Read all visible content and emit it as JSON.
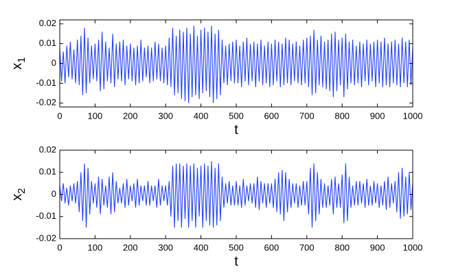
{
  "chart_data": [
    {
      "type": "line",
      "xlabel": "t",
      "ylabel": "x",
      "ylabel_subscript": "1",
      "color": "#1f3fff",
      "xlim": [
        0,
        1000
      ],
      "ylim": [
        -0.022,
        0.022
      ],
      "xticks": [
        0,
        100,
        200,
        300,
        400,
        500,
        600,
        700,
        800,
        900,
        1000
      ],
      "yticks": [
        -0.02,
        -0.01,
        0,
        0.01,
        0.02
      ],
      "x": [
        0,
        5,
        10,
        15,
        20,
        25,
        30,
        35,
        40,
        45,
        50,
        55,
        60,
        65,
        70,
        75,
        80,
        85,
        90,
        95,
        100,
        105,
        110,
        115,
        120,
        125,
        130,
        135,
        140,
        145,
        150,
        155,
        160,
        165,
        170,
        175,
        180,
        185,
        190,
        195,
        200,
        205,
        210,
        215,
        220,
        225,
        230,
        235,
        240,
        245,
        250,
        255,
        260,
        265,
        270,
        275,
        280,
        285,
        290,
        295,
        300,
        305,
        310,
        315,
        320,
        325,
        330,
        335,
        340,
        345,
        350,
        355,
        360,
        365,
        370,
        375,
        380,
        385,
        390,
        395,
        400,
        405,
        410,
        415,
        420,
        425,
        430,
        435,
        440,
        445,
        450,
        455,
        460,
        465,
        470,
        475,
        480,
        485,
        490,
        495,
        500,
        505,
        510,
        515,
        520,
        525,
        530,
        535,
        540,
        545,
        550,
        555,
        560,
        565,
        570,
        575,
        580,
        585,
        590,
        595,
        600,
        605,
        610,
        615,
        620,
        625,
        630,
        635,
        640,
        645,
        650,
        655,
        660,
        665,
        670,
        675,
        680,
        685,
        690,
        695,
        700,
        705,
        710,
        715,
        720,
        725,
        730,
        735,
        740,
        745,
        750,
        755,
        760,
        765,
        770,
        775,
        780,
        785,
        790,
        795,
        800,
        805,
        810,
        815,
        820,
        825,
        830,
        835,
        840,
        845,
        850,
        855,
        860,
        865,
        870,
        875,
        880,
        885,
        890,
        895,
        900,
        905,
        910,
        915,
        920,
        925,
        930,
        935,
        940,
        945,
        950,
        955,
        960,
        965,
        970,
        975,
        980,
        985,
        990,
        995,
        1000
      ],
      "values": [
        0.008,
        -0.009,
        0.006,
        -0.01,
        0.009,
        -0.007,
        0.011,
        -0.008,
        0.007,
        -0.01,
        0.012,
        -0.011,
        0.014,
        -0.016,
        0.018,
        -0.015,
        0.013,
        -0.01,
        0.009,
        -0.008,
        0.01,
        -0.009,
        0.012,
        -0.014,
        0.016,
        -0.013,
        0.011,
        -0.009,
        0.008,
        -0.01,
        0.015,
        -0.012,
        0.01,
        -0.008,
        0.011,
        -0.009,
        0.012,
        -0.011,
        0.009,
        -0.008,
        0.01,
        -0.009,
        0.008,
        -0.011,
        0.009,
        -0.01,
        0.012,
        -0.009,
        0.008,
        -0.007,
        0.009,
        -0.01,
        0.008,
        -0.009,
        0.011,
        -0.008,
        0.01,
        -0.009,
        0.008,
        -0.01,
        0.009,
        -0.011,
        0.013,
        -0.012,
        0.018,
        -0.016,
        0.014,
        -0.015,
        0.017,
        -0.018,
        0.016,
        -0.019,
        0.018,
        -0.02,
        0.015,
        -0.017,
        0.019,
        -0.016,
        0.014,
        -0.018,
        0.017,
        -0.015,
        0.018,
        -0.014,
        0.016,
        -0.017,
        0.019,
        -0.02,
        0.015,
        -0.018,
        0.017,
        -0.016,
        0.012,
        -0.01,
        0.009,
        -0.011,
        0.01,
        -0.009,
        0.011,
        -0.01,
        0.012,
        -0.01,
        0.009,
        -0.012,
        0.011,
        -0.009,
        0.013,
        -0.011,
        0.01,
        -0.009,
        0.011,
        -0.012,
        0.01,
        -0.009,
        0.012,
        -0.011,
        0.009,
        -0.01,
        0.011,
        -0.012,
        0.01,
        -0.011,
        0.012,
        -0.009,
        0.011,
        -0.012,
        0.01,
        -0.011,
        0.013,
        -0.01,
        0.012,
        -0.011,
        0.01,
        -0.009,
        0.011,
        -0.01,
        0.009,
        -0.011,
        0.012,
        -0.01,
        0.013,
        -0.012,
        0.014,
        -0.016,
        0.017,
        -0.015,
        0.012,
        -0.011,
        0.014,
        -0.012,
        0.011,
        -0.013,
        0.012,
        -0.014,
        0.015,
        -0.017,
        0.016,
        -0.014,
        0.012,
        -0.011,
        0.013,
        -0.017,
        0.015,
        -0.013,
        0.011,
        -0.01,
        0.012,
        -0.011,
        0.009,
        -0.01,
        0.011,
        -0.012,
        0.01,
        -0.009,
        0.012,
        -0.011,
        0.01,
        -0.009,
        0.011,
        -0.012,
        0.012,
        -0.01,
        0.011,
        -0.012,
        0.013,
        -0.011,
        0.01,
        -0.012,
        0.011,
        -0.01,
        0.012,
        -0.011,
        0.01,
        -0.012,
        0.013,
        -0.01,
        0.011,
        -0.012,
        0.012,
        -0.011,
        0.008
      ]
    },
    {
      "type": "line",
      "xlabel": "t",
      "ylabel": "x",
      "ylabel_subscript": "2",
      "color": "#1f3fff",
      "xlim": [
        0,
        1000
      ],
      "ylim": [
        -0.02,
        0.02
      ],
      "xticks": [
        0,
        100,
        200,
        300,
        400,
        500,
        600,
        700,
        800,
        900,
        1000
      ],
      "yticks": [
        -0.02,
        -0.01,
        0,
        0.01,
        0.02
      ],
      "x": [
        0,
        5,
        10,
        15,
        20,
        25,
        30,
        35,
        40,
        45,
        50,
        55,
        60,
        65,
        70,
        75,
        80,
        85,
        90,
        95,
        100,
        105,
        110,
        115,
        120,
        125,
        130,
        135,
        140,
        145,
        150,
        155,
        160,
        165,
        170,
        175,
        180,
        185,
        190,
        195,
        200,
        205,
        210,
        215,
        220,
        225,
        230,
        235,
        240,
        245,
        250,
        255,
        260,
        265,
        270,
        275,
        280,
        285,
        290,
        295,
        300,
        305,
        310,
        315,
        320,
        325,
        330,
        335,
        340,
        345,
        350,
        355,
        360,
        365,
        370,
        375,
        380,
        385,
        390,
        395,
        400,
        405,
        410,
        415,
        420,
        425,
        430,
        435,
        440,
        445,
        450,
        455,
        460,
        465,
        470,
        475,
        480,
        485,
        490,
        495,
        500,
        505,
        510,
        515,
        520,
        525,
        530,
        535,
        540,
        545,
        550,
        555,
        560,
        565,
        570,
        575,
        580,
        585,
        590,
        595,
        600,
        605,
        610,
        615,
        620,
        625,
        630,
        635,
        640,
        645,
        650,
        655,
        660,
        665,
        670,
        675,
        680,
        685,
        690,
        695,
        700,
        705,
        710,
        715,
        720,
        725,
        730,
        735,
        740,
        745,
        750,
        755,
        760,
        765,
        770,
        775,
        780,
        785,
        790,
        795,
        800,
        805,
        810,
        815,
        820,
        825,
        830,
        835,
        840,
        845,
        850,
        855,
        860,
        865,
        870,
        875,
        880,
        885,
        890,
        895,
        900,
        905,
        910,
        915,
        920,
        925,
        930,
        935,
        940,
        945,
        950,
        955,
        960,
        965,
        970,
        975,
        980,
        985,
        990,
        995,
        1000
      ],
      "values": [
        0.004,
        -0.003,
        0.005,
        -0.004,
        0.003,
        -0.005,
        0.004,
        -0.003,
        0.005,
        -0.004,
        0.006,
        -0.008,
        0.01,
        -0.012,
        0.014,
        -0.015,
        0.012,
        -0.009,
        0.006,
        -0.004,
        0.005,
        -0.006,
        0.008,
        -0.009,
        0.007,
        -0.005,
        0.004,
        -0.006,
        0.008,
        -0.009,
        0.01,
        -0.008,
        0.006,
        -0.004,
        0.003,
        -0.004,
        0.005,
        -0.006,
        0.007,
        -0.005,
        0.004,
        -0.003,
        0.005,
        -0.006,
        0.007,
        -0.005,
        0.004,
        -0.003,
        0.004,
        -0.005,
        0.006,
        -0.005,
        0.004,
        -0.003,
        0.004,
        -0.006,
        0.007,
        -0.005,
        0.004,
        -0.003,
        0.004,
        -0.005,
        0.006,
        -0.01,
        0.013,
        -0.015,
        0.014,
        -0.012,
        0.014,
        -0.015,
        0.013,
        -0.011,
        0.014,
        -0.015,
        0.013,
        -0.012,
        0.014,
        -0.015,
        0.012,
        -0.01,
        0.013,
        -0.015,
        0.014,
        -0.012,
        0.013,
        -0.014,
        0.015,
        -0.015,
        0.012,
        -0.014,
        0.014,
        -0.012,
        0.008,
        -0.006,
        0.005,
        -0.004,
        0.006,
        -0.005,
        0.004,
        -0.005,
        0.006,
        -0.005,
        0.004,
        -0.006,
        0.007,
        -0.005,
        0.004,
        -0.003,
        0.005,
        -0.004,
        0.005,
        -0.006,
        0.008,
        -0.007,
        0.006,
        -0.004,
        0.005,
        -0.006,
        0.005,
        -0.004,
        0.005,
        -0.006,
        0.007,
        -0.008,
        0.01,
        -0.009,
        0.011,
        -0.012,
        0.01,
        -0.008,
        0.007,
        -0.006,
        0.005,
        -0.004,
        0.005,
        -0.006,
        0.004,
        -0.005,
        0.006,
        -0.005,
        0.006,
        -0.009,
        0.012,
        -0.015,
        0.014,
        -0.012,
        0.01,
        -0.009,
        0.007,
        -0.006,
        0.005,
        -0.006,
        0.004,
        -0.005,
        0.007,
        -0.009,
        0.008,
        -0.006,
        0.005,
        -0.006,
        0.009,
        -0.013,
        0.014,
        -0.012,
        0.008,
        -0.006,
        0.004,
        -0.005,
        0.006,
        -0.005,
        0.006,
        -0.004,
        0.005,
        -0.006,
        0.007,
        -0.005,
        0.004,
        -0.005,
        0.006,
        -0.004,
        0.005,
        -0.006,
        0.004,
        -0.005,
        0.006,
        -0.007,
        0.008,
        -0.006,
        0.005,
        -0.004,
        0.006,
        -0.008,
        0.01,
        -0.011,
        0.012,
        -0.01,
        0.008,
        -0.009,
        0.01,
        -0.007,
        0.005
      ]
    }
  ]
}
